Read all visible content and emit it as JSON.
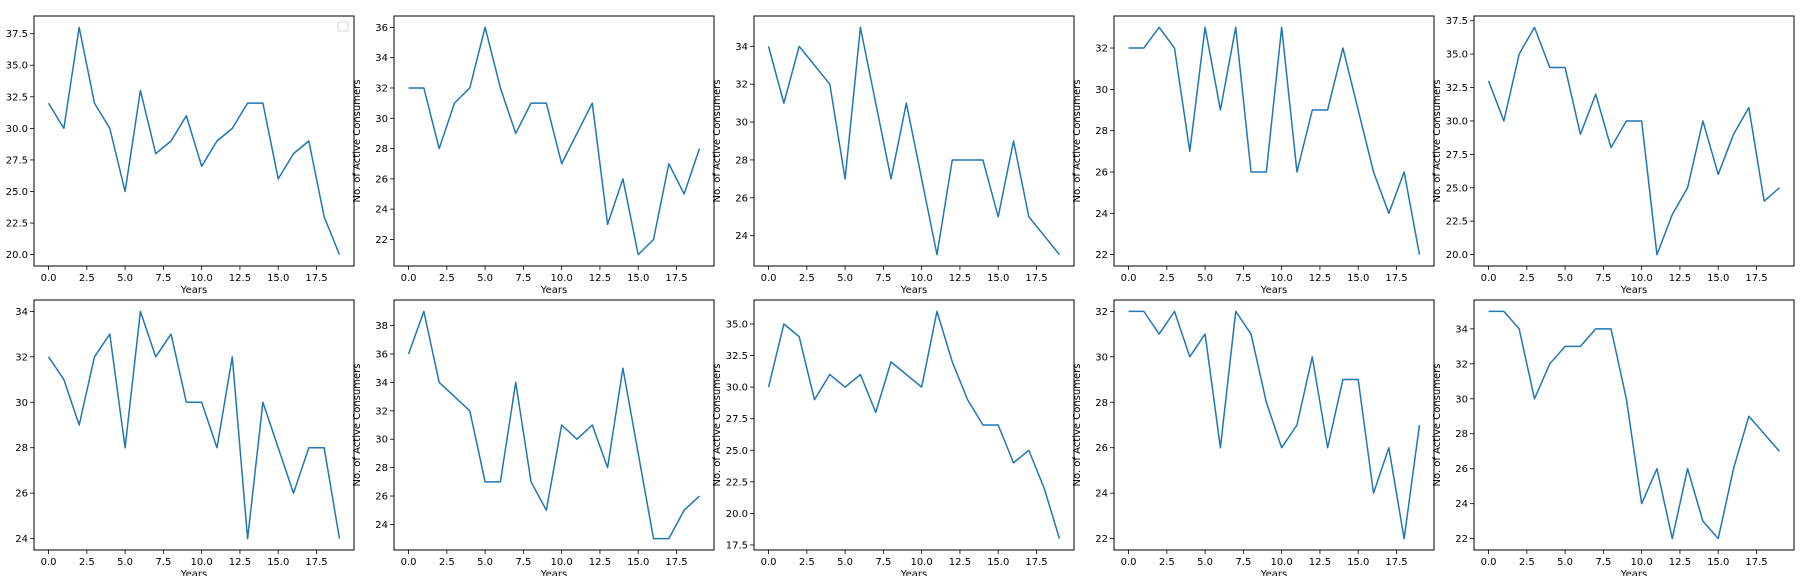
{
  "figure": {
    "line_color": "#1f77b4"
  },
  "chart_data": [
    {
      "type": "line",
      "xlabel": "Years",
      "ylabel": "",
      "legend": "top-right",
      "xlim": [
        -0.95,
        19.95
      ],
      "ylim": [
        19.1,
        38.9
      ],
      "xticks": [
        "0.0",
        "2.5",
        "5.0",
        "7.5",
        "10.0",
        "12.5",
        "15.0",
        "17.5"
      ],
      "yticks": [
        "20.0",
        "22.5",
        "25.0",
        "27.5",
        "30.0",
        "32.5",
        "35.0",
        "37.5"
      ],
      "x": [
        0,
        1,
        2,
        3,
        4,
        5,
        6,
        7,
        8,
        9,
        10,
        11,
        12,
        13,
        14,
        15,
        16,
        17,
        18,
        19
      ],
      "values": [
        32,
        30,
        38,
        32,
        30,
        25,
        33,
        28,
        29,
        31,
        27,
        29,
        30,
        32,
        32,
        26,
        28,
        29,
        23,
        20
      ]
    },
    {
      "type": "line",
      "xlabel": "Years",
      "ylabel": "No. of Active Consumers",
      "xlim": [
        -0.95,
        19.95
      ],
      "ylim": [
        20.25,
        36.75
      ],
      "xticks": [
        "0.0",
        "2.5",
        "5.0",
        "7.5",
        "10.0",
        "12.5",
        "15.0",
        "17.5"
      ],
      "yticks": [
        "22",
        "24",
        "26",
        "28",
        "30",
        "32",
        "34",
        "36"
      ],
      "x": [
        0,
        1,
        2,
        3,
        4,
        5,
        6,
        7,
        8,
        9,
        10,
        11,
        12,
        13,
        14,
        15,
        16,
        17,
        18,
        19
      ],
      "values": [
        32,
        32,
        28,
        31,
        32,
        36,
        32,
        29,
        31,
        31,
        27,
        29,
        31,
        23,
        26,
        21,
        22,
        27,
        25,
        28
      ]
    },
    {
      "type": "line",
      "xlabel": "Years",
      "ylabel": "No. of Active Consumers",
      "xlim": [
        -0.95,
        19.95
      ],
      "ylim": [
        22.4,
        35.6
      ],
      "xticks": [
        "0.0",
        "2.5",
        "5.0",
        "7.5",
        "10.0",
        "12.5",
        "15.0",
        "17.5"
      ],
      "yticks": [
        "24",
        "26",
        "28",
        "30",
        "32",
        "34"
      ],
      "x": [
        0,
        1,
        2,
        3,
        4,
        5,
        6,
        7,
        8,
        9,
        10,
        11,
        12,
        13,
        14,
        15,
        16,
        17,
        18,
        19
      ],
      "values": [
        34,
        31,
        34,
        33,
        32,
        27,
        35,
        31,
        27,
        31,
        27,
        23,
        28,
        28,
        28,
        25,
        29,
        25,
        24,
        23
      ]
    },
    {
      "type": "line",
      "xlabel": "Years",
      "ylabel": "No. of Active Consumers",
      "xlim": [
        -0.95,
        19.95
      ],
      "ylim": [
        21.45,
        33.55
      ],
      "xticks": [
        "0.0",
        "2.5",
        "5.0",
        "7.5",
        "10.0",
        "12.5",
        "15.0",
        "17.5"
      ],
      "yticks": [
        "22",
        "24",
        "26",
        "28",
        "30",
        "32"
      ],
      "x": [
        0,
        1,
        2,
        3,
        4,
        5,
        6,
        7,
        8,
        9,
        10,
        11,
        12,
        13,
        14,
        15,
        16,
        17,
        18,
        19
      ],
      "values": [
        32,
        32,
        33,
        32,
        27,
        33,
        29,
        33,
        26,
        26,
        33,
        26,
        29,
        29,
        32,
        29,
        26,
        24,
        26,
        22
      ]
    },
    {
      "type": "line",
      "xlabel": "Years",
      "ylabel": "No. of Active Consumers",
      "xlim": [
        -0.95,
        19.95
      ],
      "ylim": [
        19.15,
        37.85
      ],
      "xticks": [
        "0.0",
        "2.5",
        "5.0",
        "7.5",
        "10.0",
        "12.5",
        "15.0",
        "17.5"
      ],
      "yticks": [
        "20.0",
        "22.5",
        "25.0",
        "27.5",
        "30.0",
        "32.5",
        "35.0",
        "37.5"
      ],
      "x": [
        0,
        1,
        2,
        3,
        4,
        5,
        6,
        7,
        8,
        9,
        10,
        11,
        12,
        13,
        14,
        15,
        16,
        17,
        18,
        19
      ],
      "values": [
        33,
        30,
        35,
        37,
        34,
        34,
        29,
        32,
        28,
        30,
        30,
        20,
        23,
        25,
        30,
        26,
        29,
        31,
        24,
        25
      ]
    },
    {
      "type": "line",
      "xlabel": "Years",
      "ylabel": "No. of Active Consumers",
      "xlim": [
        -0.95,
        19.95
      ],
      "ylim": [
        23.5,
        34.5
      ],
      "xticks": [
        "0.0",
        "2.5",
        "5.0",
        "7.5",
        "10.0",
        "12.5",
        "15.0",
        "17.5"
      ],
      "yticks": [
        "24",
        "26",
        "28",
        "30",
        "32",
        "34"
      ],
      "x": [
        0,
        1,
        2,
        3,
        4,
        5,
        6,
        7,
        8,
        9,
        10,
        11,
        12,
        13,
        14,
        15,
        16,
        17,
        18,
        19
      ],
      "values": [
        32,
        31,
        29,
        32,
        33,
        28,
        34,
        32,
        33,
        30,
        30,
        28,
        32,
        24,
        30,
        28,
        26,
        28,
        28,
        24
      ]
    },
    {
      "type": "line",
      "xlabel": "Years",
      "ylabel": "No. of Active Consumers",
      "xlim": [
        -0.95,
        19.95
      ],
      "ylim": [
        22.2,
        39.8
      ],
      "xticks": [
        "0.0",
        "2.5",
        "5.0",
        "7.5",
        "10.0",
        "12.5",
        "15.0",
        "17.5"
      ],
      "yticks": [
        "24",
        "26",
        "28",
        "30",
        "32",
        "34",
        "36",
        "38"
      ],
      "x": [
        0,
        1,
        2,
        3,
        4,
        5,
        6,
        7,
        8,
        9,
        10,
        11,
        12,
        13,
        14,
        15,
        16,
        17,
        18,
        19
      ],
      "values": [
        36,
        39,
        34,
        33,
        32,
        27,
        27,
        34,
        27,
        25,
        31,
        30,
        31,
        28,
        35,
        29,
        23,
        23,
        25,
        26
      ]
    },
    {
      "type": "line",
      "xlabel": "Years",
      "ylabel": "No. of Active Consumers",
      "xlim": [
        -0.95,
        19.95
      ],
      "ylim": [
        17.1,
        36.9
      ],
      "xticks": [
        "0.0",
        "2.5",
        "5.0",
        "7.5",
        "10.0",
        "12.5",
        "15.0",
        "17.5"
      ],
      "yticks": [
        "17.5",
        "20.0",
        "22.5",
        "25.0",
        "27.5",
        "30.0",
        "32.5",
        "35.0"
      ],
      "x": [
        0,
        1,
        2,
        3,
        4,
        5,
        6,
        7,
        8,
        9,
        10,
        11,
        12,
        13,
        14,
        15,
        16,
        17,
        18,
        19
      ],
      "values": [
        30,
        35,
        34,
        29,
        31,
        30,
        31,
        28,
        32,
        31,
        30,
        36,
        32,
        29,
        27,
        27,
        24,
        25,
        22,
        18
      ]
    },
    {
      "type": "line",
      "xlabel": "Years",
      "ylabel": "No. of Active Consumers",
      "xlim": [
        -0.95,
        19.95
      ],
      "ylim": [
        21.5,
        32.5
      ],
      "xticks": [
        "0.0",
        "2.5",
        "5.0",
        "7.5",
        "10.0",
        "12.5",
        "15.0",
        "17.5"
      ],
      "yticks": [
        "22",
        "24",
        "26",
        "28",
        "30",
        "32"
      ],
      "x": [
        0,
        1,
        2,
        3,
        4,
        5,
        6,
        7,
        8,
        9,
        10,
        11,
        12,
        13,
        14,
        15,
        16,
        17,
        18,
        19
      ],
      "values": [
        32,
        32,
        31,
        32,
        30,
        31,
        26,
        32,
        31,
        28,
        26,
        27,
        30,
        26,
        29,
        29,
        24,
        26,
        22,
        27
      ]
    },
    {
      "type": "line",
      "xlabel": "Years",
      "ylabel": "No. of Active Consumers",
      "xlim": [
        -0.95,
        19.95
      ],
      "ylim": [
        21.35,
        35.65
      ],
      "xticks": [
        "0.0",
        "2.5",
        "5.0",
        "7.5",
        "10.0",
        "12.5",
        "15.0",
        "17.5"
      ],
      "yticks": [
        "22",
        "24",
        "26",
        "28",
        "30",
        "32",
        "34"
      ],
      "x": [
        0,
        1,
        2,
        3,
        4,
        5,
        6,
        7,
        8,
        9,
        10,
        11,
        12,
        13,
        14,
        15,
        16,
        17,
        18,
        19
      ],
      "values": [
        35,
        35,
        34,
        30,
        32,
        33,
        33,
        34,
        34,
        30,
        24,
        26,
        22,
        26,
        23,
        22,
        26,
        29,
        28,
        27
      ]
    }
  ]
}
